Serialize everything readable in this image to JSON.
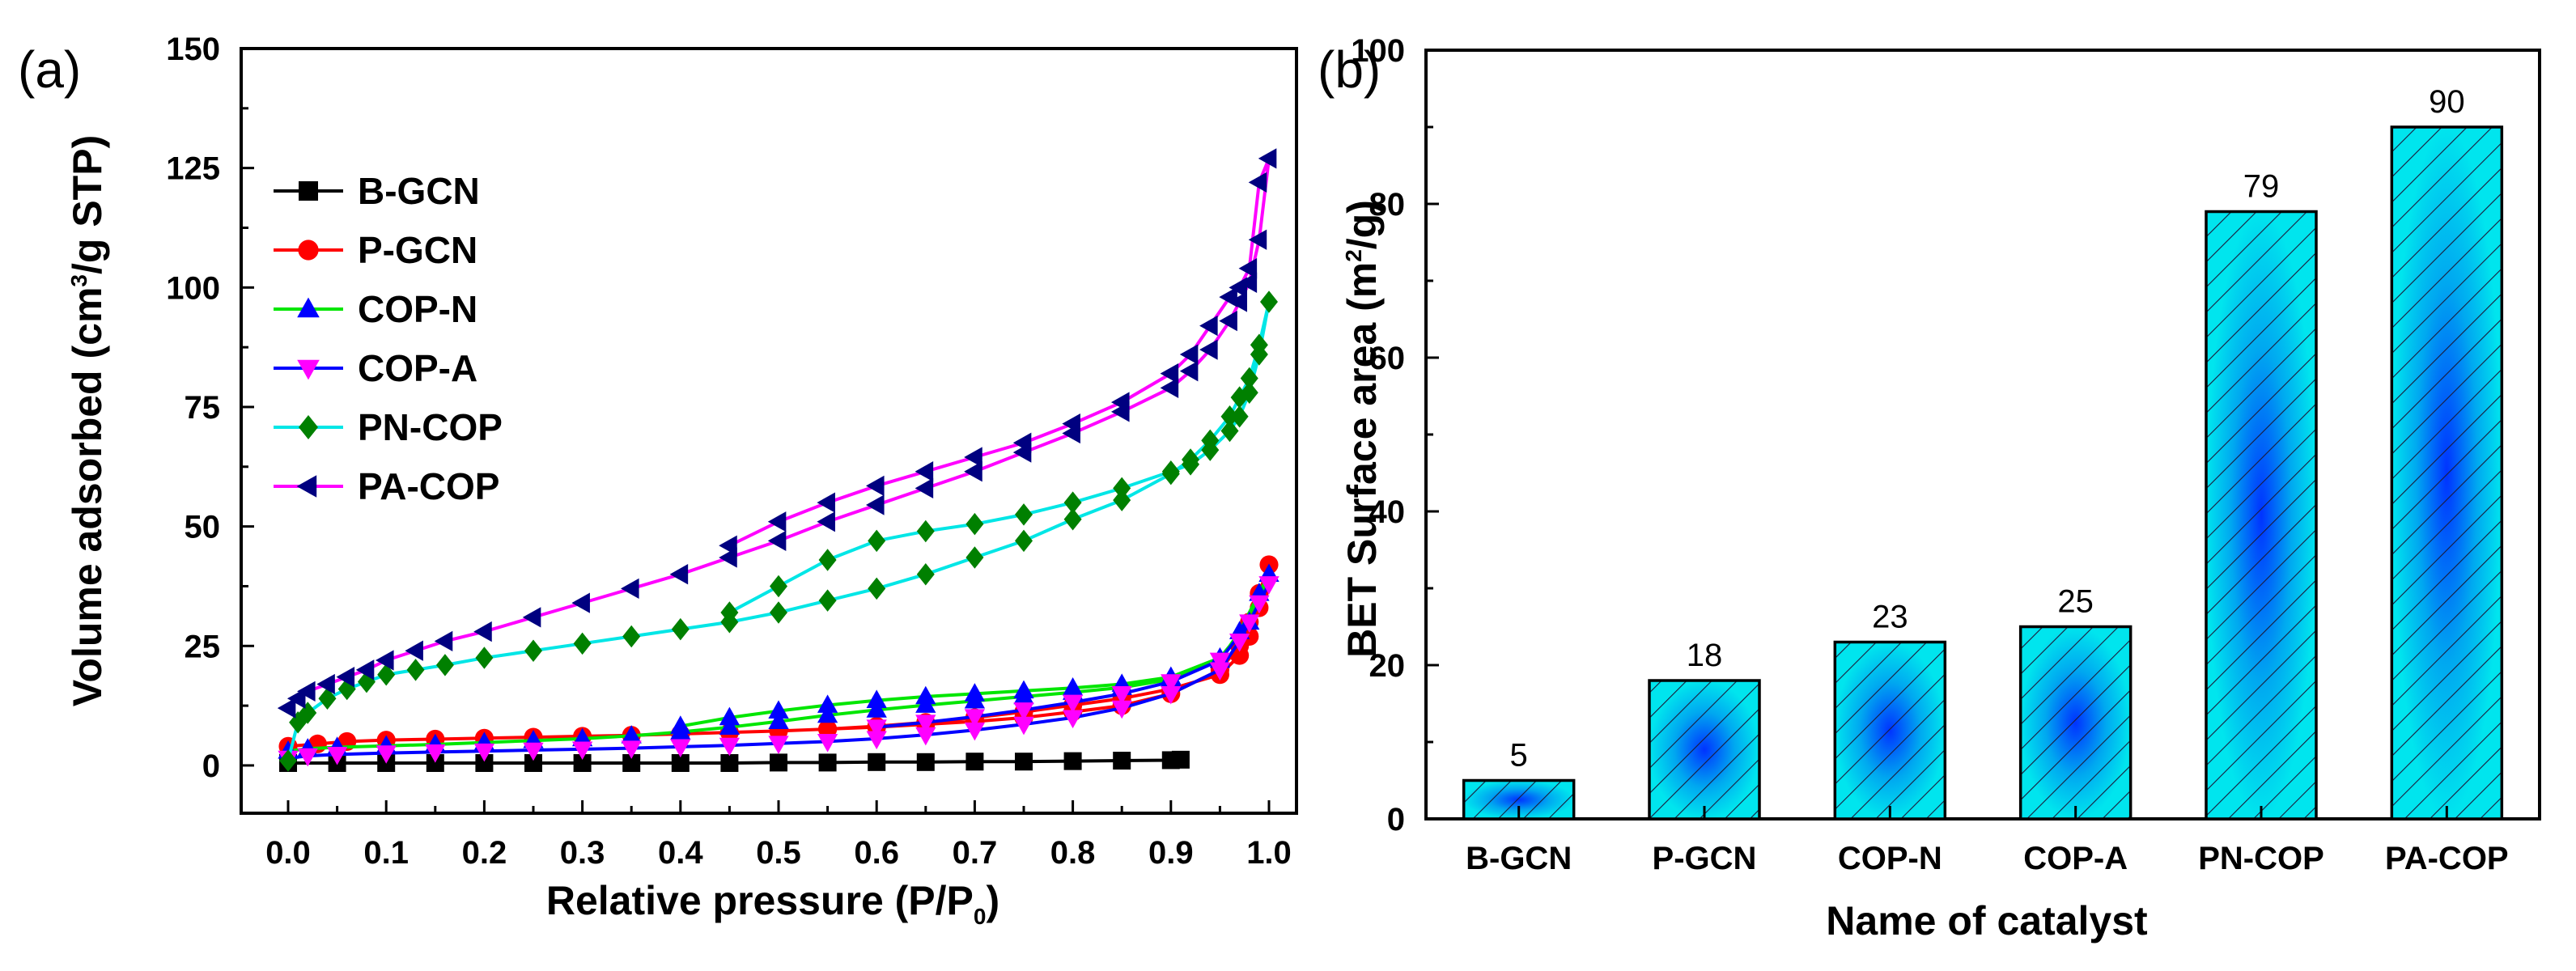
{
  "chart_data": [
    {
      "panel": "(a)",
      "type": "line",
      "xlabel": "Relative pressure (P/P",
      "xlabel_sub": "0",
      "xlabel_end": ")",
      "ylabel": "Volume adsorbed (cm",
      "ylabel_sup": "3",
      "ylabel_end": "/g STP)",
      "xlim": [
        0.0,
        1.0
      ],
      "ylim": [
        -10,
        150
      ],
      "xticks": [
        "0.0",
        "0.1",
        "0.2",
        "0.3",
        "0.4",
        "0.5",
        "0.6",
        "0.7",
        "0.8",
        "0.9",
        "1.0"
      ],
      "yticks": [
        "0",
        "25",
        "50",
        "75",
        "100",
        "125",
        "150"
      ],
      "legend_position": "upper-left",
      "series": [
        {
          "name": "B-GCN",
          "line_color": "#000000",
          "marker_color": "#000000",
          "marker": "square",
          "x": [
            0.0,
            0.05,
            0.1,
            0.15,
            0.2,
            0.25,
            0.3,
            0.35,
            0.4,
            0.45,
            0.5,
            0.55,
            0.6,
            0.65,
            0.7,
            0.75,
            0.8,
            0.85,
            0.9,
            0.91
          ],
          "y": [
            0.5,
            0.5,
            0.5,
            0.5,
            0.5,
            0.5,
            0.5,
            0.5,
            0.5,
            0.5,
            0.6,
            0.6,
            0.7,
            0.7,
            0.8,
            0.8,
            0.9,
            1.0,
            1.1,
            1.2
          ]
        },
        {
          "name": "P-GCN",
          "line_color": "#ff0000",
          "marker_color": "#ff0000",
          "marker": "circle",
          "x": [
            0.0,
            0.03,
            0.06,
            0.1,
            0.15,
            0.2,
            0.25,
            0.3,
            0.35,
            0.4,
            0.45,
            0.5,
            0.55,
            0.6,
            0.65,
            0.7,
            0.75,
            0.8,
            0.85,
            0.9,
            0.95,
            0.97,
            0.98,
            0.99,
            1.0,
            0.99,
            0.98,
            0.97,
            0.95,
            0.9,
            0.85,
            0.8,
            0.75,
            0.7,
            0.65,
            0.6,
            0.55
          ],
          "y": [
            4.0,
            4.5,
            5.0,
            5.3,
            5.5,
            5.7,
            5.9,
            6.1,
            6.3,
            6.6,
            6.9,
            7.2,
            7.6,
            8.0,
            8.6,
            9.2,
            10.0,
            11.2,
            12.5,
            15.0,
            20.0,
            25.0,
            30.0,
            36.0,
            42.0,
            33.0,
            27.0,
            23.0,
            19.0,
            16.0,
            14.0,
            12.6,
            11.2,
            10.0,
            9.0,
            8.2,
            7.6
          ]
        },
        {
          "name": "COP-N",
          "line_color": "#00e600",
          "marker_color": "#0000ff",
          "marker": "triangle-up",
          "x": [
            0.0,
            0.02,
            0.05,
            0.1,
            0.15,
            0.2,
            0.25,
            0.3,
            0.35,
            0.4,
            0.45,
            0.5,
            0.55,
            0.6,
            0.65,
            0.7,
            0.75,
            0.8,
            0.85,
            0.9,
            0.95,
            0.97,
            0.99,
            1.0,
            0.98,
            0.95,
            0.9,
            0.85,
            0.8,
            0.75,
            0.7,
            0.65,
            0.6,
            0.55,
            0.5,
            0.45,
            0.4
          ],
          "y": [
            3.0,
            3.5,
            3.8,
            4.1,
            4.4,
            4.8,
            5.2,
            5.6,
            6.2,
            7.0,
            8.0,
            9.2,
            10.5,
            11.6,
            12.6,
            13.5,
            14.4,
            15.3,
            16.3,
            18.0,
            22.0,
            28.0,
            36.0,
            40.0,
            30.0,
            22.5,
            18.5,
            17.0,
            16.2,
            15.6,
            15.0,
            14.4,
            13.6,
            12.6,
            11.4,
            10.0,
            8.2
          ]
        },
        {
          "name": "COP-A",
          "line_color": "#0000ff",
          "marker_color": "#ff00ff",
          "marker": "triangle-down",
          "x": [
            0.0,
            0.02,
            0.05,
            0.1,
            0.15,
            0.2,
            0.25,
            0.3,
            0.35,
            0.4,
            0.45,
            0.5,
            0.55,
            0.6,
            0.65,
            0.7,
            0.75,
            0.8,
            0.85,
            0.9,
            0.95,
            0.97,
            0.99,
            1.0,
            0.98,
            0.95,
            0.9,
            0.85,
            0.8,
            0.75,
            0.7,
            0.65,
            0.6
          ],
          "y": [
            1.5,
            2.0,
            2.3,
            2.6,
            2.8,
            3.0,
            3.2,
            3.4,
            3.6,
            3.9,
            4.2,
            4.6,
            5.0,
            5.6,
            6.4,
            7.4,
            8.6,
            10.0,
            12.0,
            15.0,
            20.0,
            26.0,
            34.0,
            38.0,
            30.0,
            22.0,
            17.5,
            15.0,
            13.2,
            11.6,
            10.2,
            9.0,
            8.0
          ]
        },
        {
          "name": "PN-COP",
          "line_color": "#00e6e6",
          "marker_color": "#008000",
          "marker": "diamond",
          "x": [
            0.0,
            0.01,
            0.02,
            0.04,
            0.06,
            0.08,
            0.1,
            0.13,
            0.16,
            0.2,
            0.25,
            0.3,
            0.35,
            0.4,
            0.45,
            0.5,
            0.55,
            0.6,
            0.65,
            0.7,
            0.75,
            0.8,
            0.85,
            0.9,
            0.92,
            0.94,
            0.96,
            0.97,
            0.98,
            0.99,
            1.0,
            0.99,
            0.98,
            0.97,
            0.96,
            0.94,
            0.92,
            0.9,
            0.85,
            0.8,
            0.75,
            0.7,
            0.65,
            0.6,
            0.55,
            0.5,
            0.45
          ],
          "y": [
            1.0,
            9.0,
            11.0,
            14.0,
            16.0,
            17.5,
            19.0,
            20.0,
            21.0,
            22.5,
            24.0,
            25.5,
            27.0,
            28.5,
            30.0,
            32.0,
            34.5,
            37.0,
            40.0,
            43.5,
            47.0,
            51.5,
            55.5,
            61.0,
            64.0,
            68.0,
            73.0,
            77.0,
            81.0,
            88.0,
            97.0,
            86.0,
            78.0,
            73.0,
            70.0,
            66.0,
            63.0,
            61.5,
            58.0,
            55.0,
            52.5,
            50.5,
            49.0,
            47.0,
            43.0,
            37.5,
            32.0
          ]
        },
        {
          "name": "PA-COP",
          "line_color": "#ff00ff",
          "marker_color": "#000080",
          "marker": "triangle-left",
          "x": [
            0.0,
            0.01,
            0.02,
            0.04,
            0.06,
            0.08,
            0.1,
            0.13,
            0.16,
            0.2,
            0.25,
            0.3,
            0.35,
            0.4,
            0.45,
            0.5,
            0.55,
            0.6,
            0.65,
            0.7,
            0.75,
            0.8,
            0.85,
            0.9,
            0.92,
            0.94,
            0.96,
            0.97,
            0.98,
            0.99,
            1.0,
            0.99,
            0.98,
            0.97,
            0.96,
            0.94,
            0.92,
            0.9,
            0.85,
            0.8,
            0.75,
            0.7,
            0.65,
            0.6,
            0.55,
            0.5,
            0.45
          ],
          "y": [
            12.0,
            14.0,
            15.5,
            17.0,
            18.5,
            20.0,
            22.0,
            24.0,
            26.0,
            28.0,
            31.0,
            34.0,
            37.0,
            40.0,
            43.5,
            47.0,
            51.0,
            54.5,
            58.0,
            61.5,
            65.5,
            69.5,
            74.0,
            79.0,
            82.5,
            87.0,
            93.0,
            97.0,
            101.0,
            110.0,
            127.0,
            122.0,
            104.0,
            100.0,
            98.0,
            92.0,
            86.0,
            82.0,
            76.0,
            71.5,
            67.5,
            64.5,
            61.5,
            58.5,
            55.0,
            51.0,
            46.0
          ]
        }
      ]
    },
    {
      "panel": "(b)",
      "type": "bar",
      "xlabel": "Name of catalyst",
      "ylabel": "BET Surface area (m",
      "ylabel_sup": "2",
      "ylabel_end": "/g)",
      "categories": [
        "B-GCN",
        "P-GCN",
        "COP-N",
        "COP-A",
        "PN-COP",
        "PA-COP"
      ],
      "values": [
        5,
        18,
        23,
        25,
        79,
        90
      ],
      "value_labels": [
        "5",
        "18",
        "23",
        "25",
        "79",
        "90"
      ],
      "ylim": [
        0,
        100
      ],
      "yticks": [
        "0",
        "20",
        "40",
        "60",
        "80",
        "100"
      ],
      "bar_fill": "#00e5ee",
      "bar_center_color": "#0033ff",
      "hatch_color": "#1a1a3a"
    }
  ]
}
